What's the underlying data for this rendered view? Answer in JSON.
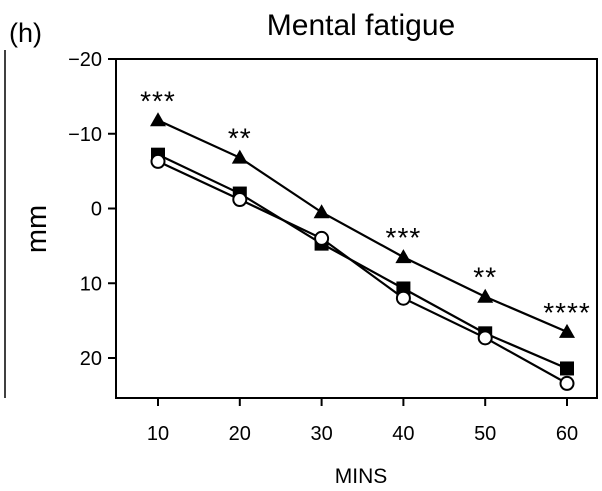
{
  "panel_label": "(h)",
  "chart_data": {
    "type": "line",
    "title": "Mental fatigue",
    "xlabel": "MINS",
    "ylabel": "mm",
    "x": [
      10,
      20,
      30,
      40,
      50,
      60
    ],
    "x_ticks": [
      "10",
      "20",
      "30",
      "40",
      "50",
      "60"
    ],
    "y_ticks": [
      "−20",
      "−10",
      "0",
      "10",
      "20"
    ],
    "y_tick_values": [
      -20,
      -10,
      0,
      10,
      20
    ],
    "ylim": [
      -20,
      25
    ],
    "y_inverted": true,
    "xlim": [
      5,
      65
    ],
    "grid": false,
    "series": [
      {
        "marker": "triangle",
        "values": [
          -11.8,
          -6.8,
          0.5,
          6.5,
          11.8,
          16.5
        ]
      },
      {
        "marker": "square",
        "values": [
          -7.2,
          -2.0,
          4.7,
          10.7,
          16.7,
          21.4
        ]
      },
      {
        "marker": "circle",
        "values": [
          -6.3,
          -1.2,
          4.0,
          12.0,
          17.3,
          23.4
        ]
      }
    ],
    "annotations": [
      {
        "x": 10,
        "text": "***"
      },
      {
        "x": 20,
        "text": "**"
      },
      {
        "x": 40,
        "text": "***"
      },
      {
        "x": 50,
        "text": "**"
      },
      {
        "x": 60,
        "text": "****"
      }
    ]
  }
}
